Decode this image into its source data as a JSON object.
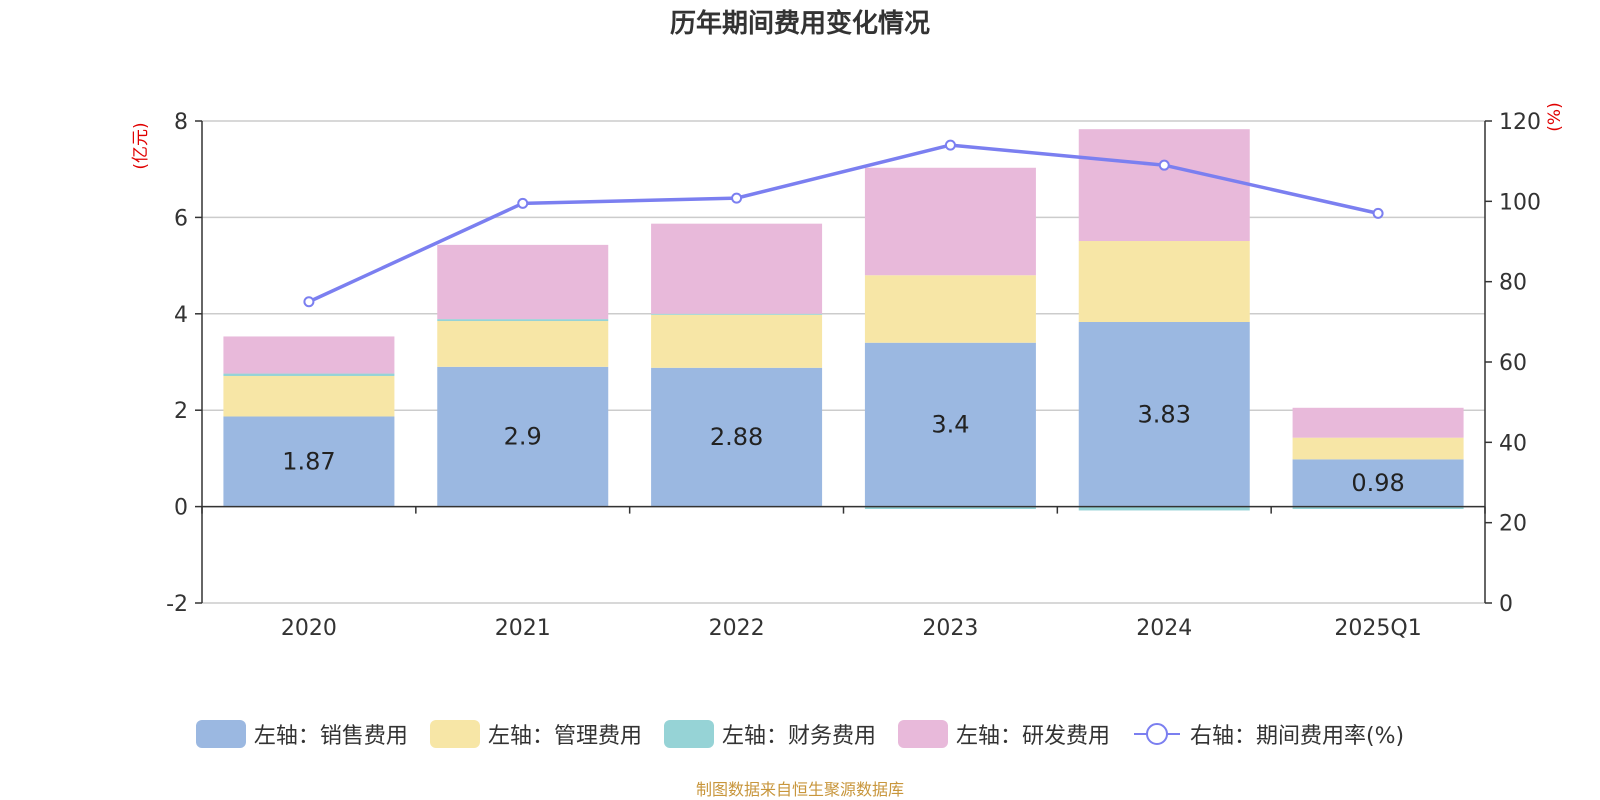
{
  "title": "历年期间费用变化情况",
  "footer": "制图数据来自恒生聚源数据库",
  "units": {
    "left": "(亿元)",
    "right": "(%)"
  },
  "legend": [
    {
      "label": "左轴：销售费用",
      "color": "#9bb8e1",
      "kind": "bar"
    },
    {
      "label": "左轴：管理费用",
      "color": "#f7e6a6",
      "kind": "bar"
    },
    {
      "label": "左轴：财务费用",
      "color": "#96d3d6",
      "kind": "bar"
    },
    {
      "label": "左轴：研发费用",
      "color": "#e8b9da",
      "kind": "bar"
    },
    {
      "label": "右轴：期间费用率(%)",
      "color": "#7b7ff0",
      "kind": "line"
    }
  ],
  "chart_data": {
    "type": "bar",
    "stacked": true,
    "title": "历年期间费用变化情况",
    "categories": [
      "2020",
      "2021",
      "2022",
      "2023",
      "2024",
      "2025Q1"
    ],
    "left_axis": {
      "label": "(亿元)",
      "min": -2,
      "max": 8,
      "ticks": [
        -2,
        0,
        2,
        4,
        6,
        8
      ]
    },
    "right_axis": {
      "label": "(%)",
      "min": 0,
      "max": 120,
      "ticks": [
        0,
        20,
        40,
        60,
        80,
        100,
        120
      ]
    },
    "series": [
      {
        "name": "左轴：销售费用",
        "axis": "left",
        "type": "bar",
        "color": "#9bb8e1",
        "values": [
          1.87,
          2.9,
          2.88,
          3.4,
          3.83,
          0.98
        ],
        "labels": [
          "1.87",
          "2.9",
          "2.88",
          "3.4",
          "3.83",
          "0.98"
        ]
      },
      {
        "name": "左轴：管理费用",
        "axis": "left",
        "type": "bar",
        "color": "#f7e6a6",
        "values": [
          0.84,
          0.95,
          1.1,
          1.4,
          1.68,
          0.45
        ]
      },
      {
        "name": "左轴：财务费用",
        "axis": "left",
        "type": "bar",
        "color": "#96d3d6",
        "values": [
          0.05,
          0.04,
          0.02,
          -0.05,
          -0.08,
          -0.05
        ]
      },
      {
        "name": "左轴：研发费用",
        "axis": "left",
        "type": "bar",
        "color": "#e8b9da",
        "values": [
          0.77,
          1.54,
          1.87,
          2.23,
          2.32,
          0.62
        ]
      },
      {
        "name": "右轴：期间费用率(%)",
        "axis": "right",
        "type": "line",
        "color": "#7b7ff0",
        "values": [
          75,
          99.5,
          100.8,
          114,
          109,
          97
        ]
      }
    ]
  }
}
